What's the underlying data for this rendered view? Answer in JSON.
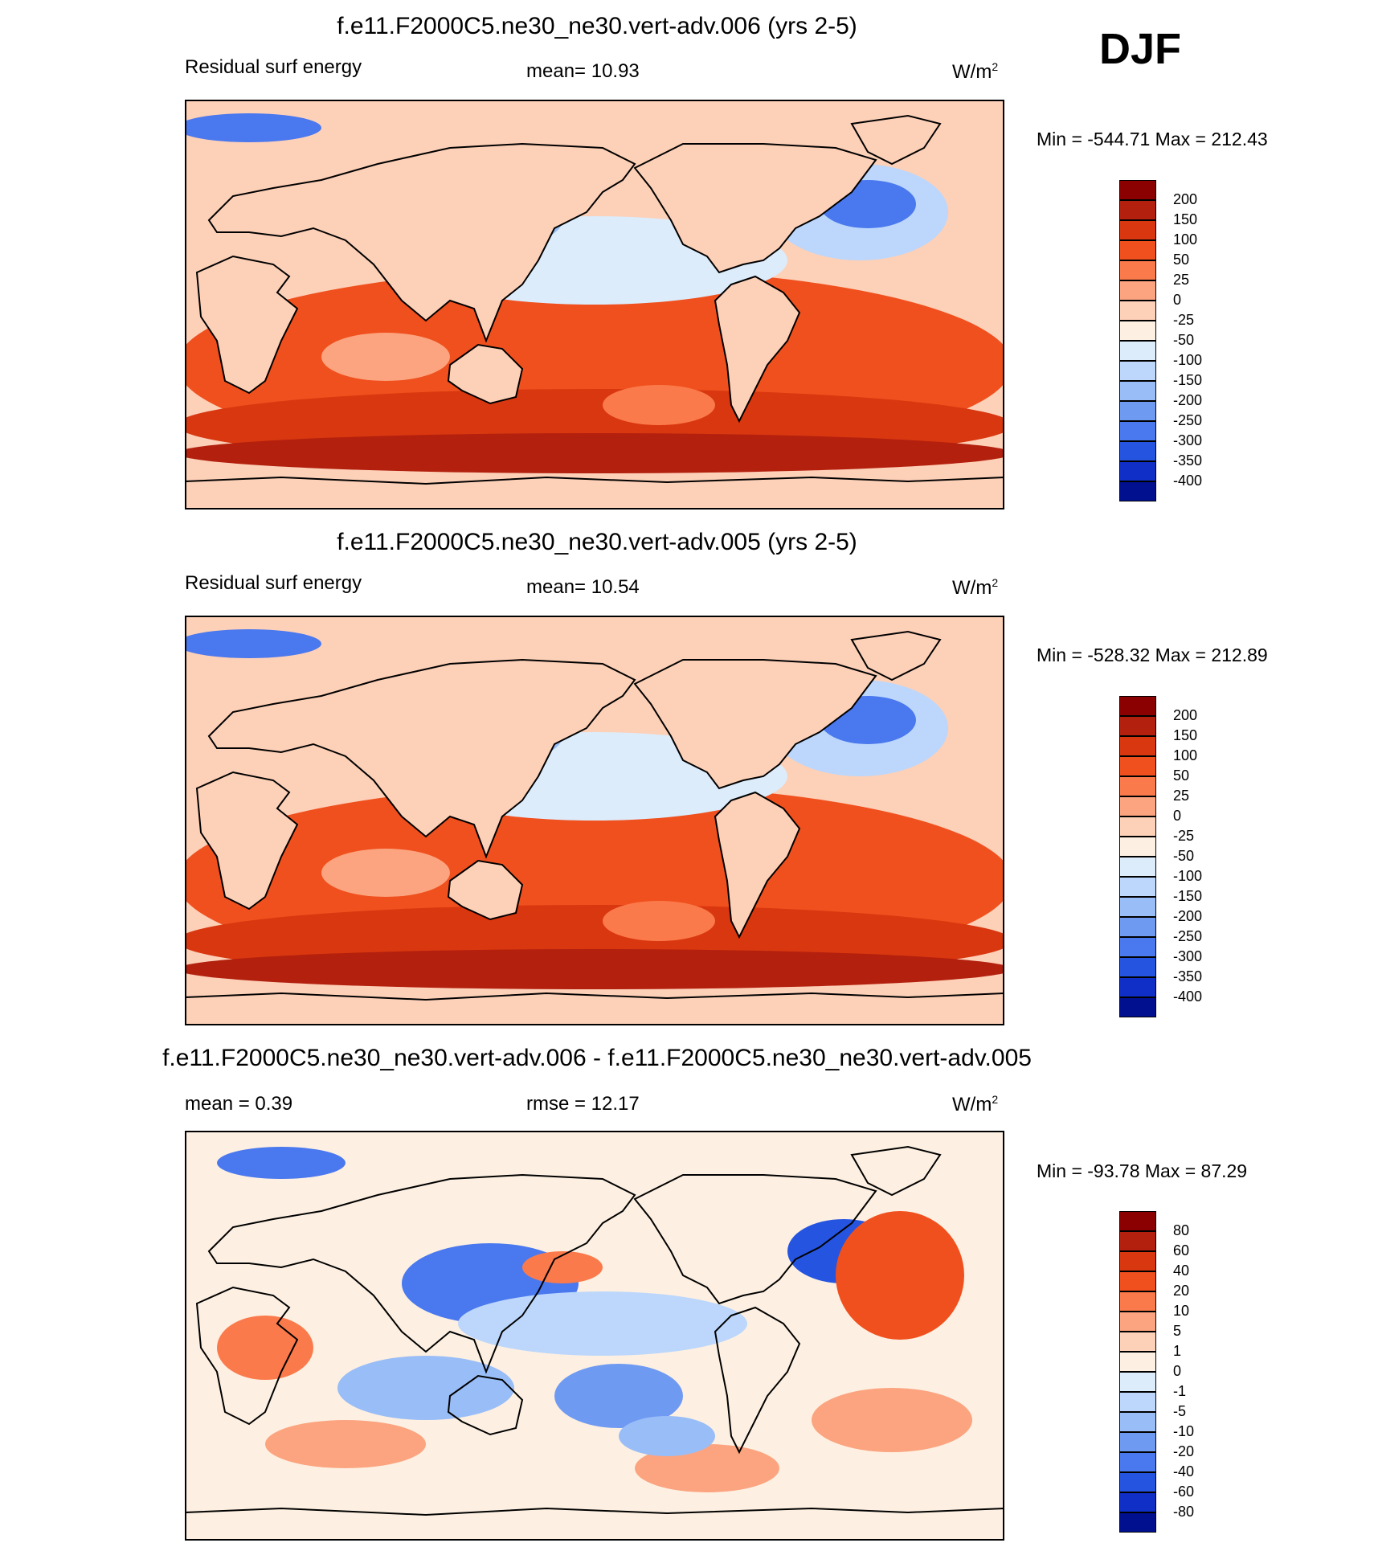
{
  "season": "DJF",
  "units_label": "W/m",
  "units_sup": "2",
  "panels": [
    {
      "title": "f.e11.F2000C5.ne30_ne30.vert-adv.006 (yrs 2-5)",
      "left_label": "Residual surf energy",
      "center_label": "mean=  10.93",
      "minmax": "Min = -544.71 Max = 212.43",
      "levels": [
        "200",
        "150",
        "100",
        "50",
        "25",
        "0",
        "-25",
        "-50",
        "-100",
        "-150",
        "-200",
        "-250",
        "-300",
        "-350",
        "-400"
      ],
      "colors": [
        "#8b0000",
        "#b3200e",
        "#d9370f",
        "#f0501e",
        "#fb7a4b",
        "#fca47f",
        "#fdd0b8",
        "#fdf0e2",
        "#dcecfb",
        "#bcd7fb",
        "#99bdf7",
        "#6f9af2",
        "#4a78ee",
        "#2554e0",
        "#0f2fc7",
        "#00108f"
      ]
    },
    {
      "title": "f.e11.F2000C5.ne30_ne30.vert-adv.005 (yrs 2-5)",
      "left_label": "Residual surf energy",
      "center_label": "mean=  10.54",
      "minmax": "Min = -528.32 Max = 212.89",
      "levels": [
        "200",
        "150",
        "100",
        "50",
        "25",
        "0",
        "-25",
        "-50",
        "-100",
        "-150",
        "-200",
        "-250",
        "-300",
        "-350",
        "-400"
      ],
      "colors": [
        "#8b0000",
        "#b3200e",
        "#d9370f",
        "#f0501e",
        "#fb7a4b",
        "#fca47f",
        "#fdd0b8",
        "#fdf0e2",
        "#dcecfb",
        "#bcd7fb",
        "#99bdf7",
        "#6f9af2",
        "#4a78ee",
        "#2554e0",
        "#0f2fc7",
        "#00108f"
      ]
    },
    {
      "title": "f.e11.F2000C5.ne30_ne30.vert-adv.006 - f.e11.F2000C5.ne30_ne30.vert-adv.005",
      "left_label": "mean =   0.39",
      "center_label": "rmse =  12.17",
      "minmax": "Min = -93.78 Max =  87.29",
      "levels": [
        "80",
        "60",
        "40",
        "20",
        "10",
        "5",
        "1",
        "0",
        "-1",
        "-5",
        "-10",
        "-20",
        "-40",
        "-60",
        "-80"
      ],
      "colors": [
        "#8b0000",
        "#b3200e",
        "#d9370f",
        "#f0501e",
        "#fb7a4b",
        "#fca47f",
        "#fdd0b8",
        "#fdf0e2",
        "#dcecfb",
        "#bcd7fb",
        "#99bdf7",
        "#6f9af2",
        "#4a78ee",
        "#2554e0",
        "#0f2fc7",
        "#00108f"
      ]
    }
  ]
}
